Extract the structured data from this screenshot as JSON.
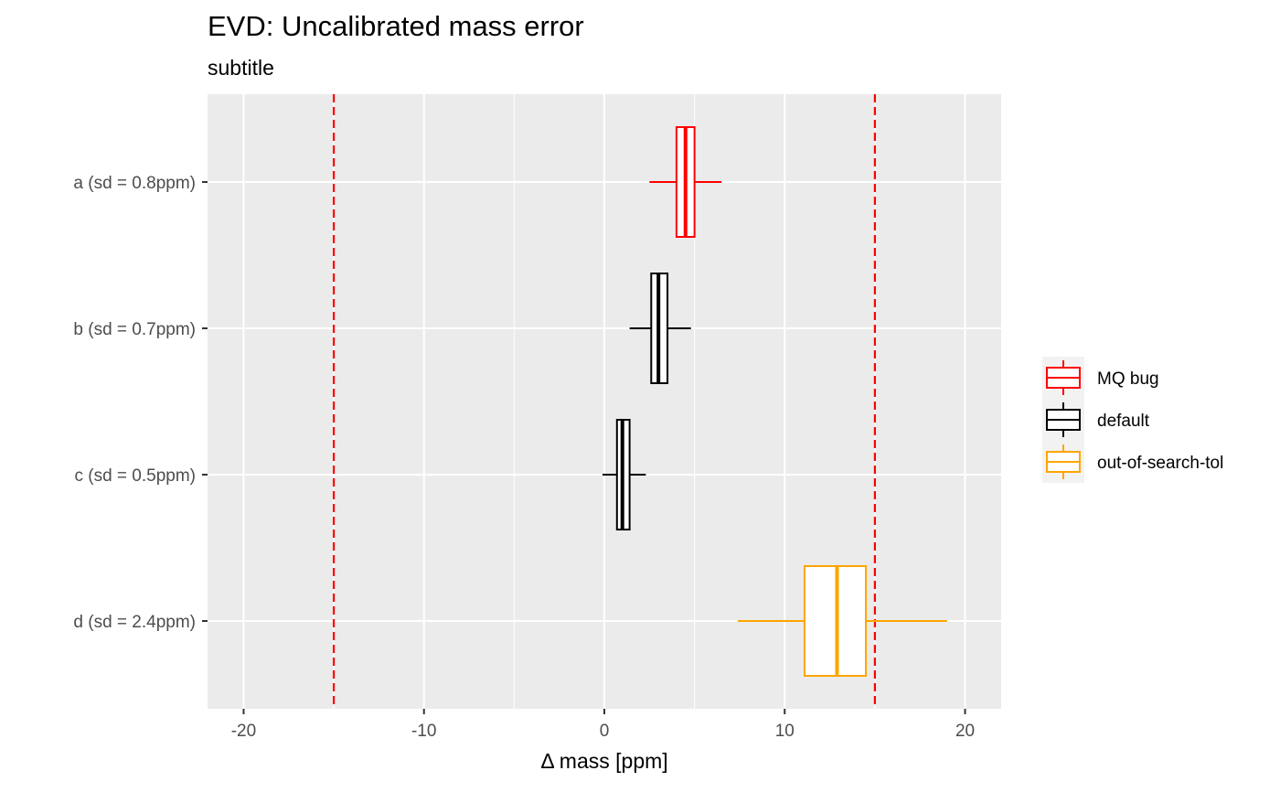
{
  "chart_data": {
    "type": "boxplot",
    "orientation": "horizontal",
    "title": "EVD: Uncalibrated mass error",
    "subtitle": "subtitle",
    "xlabel": "Δ mass [ppm]",
    "ylabel": "",
    "xlim": [
      -22,
      22
    ],
    "xticks": [
      -20,
      -10,
      0,
      10,
      20
    ],
    "xtick_labels": [
      "-20",
      "-10",
      "0",
      "10",
      "20"
    ],
    "categories": [
      "a (sd = 0.8ppm)",
      "b (sd = 0.7ppm)",
      "c (sd = 0.5ppm)",
      "d (sd = 2.4ppm)"
    ],
    "boxes": [
      {
        "category": "a (sd = 0.8ppm)",
        "group": "MQ bug",
        "whisker_low": 2.5,
        "q1": 4.0,
        "median": 4.5,
        "q3": 5.0,
        "whisker_high": 6.5
      },
      {
        "category": "b (sd = 0.7ppm)",
        "group": "default",
        "whisker_low": 1.4,
        "q1": 2.6,
        "median": 3.0,
        "q3": 3.5,
        "whisker_high": 4.8
      },
      {
        "category": "c (sd = 0.5ppm)",
        "group": "default",
        "whisker_low": -0.1,
        "q1": 0.7,
        "median": 1.0,
        "q3": 1.4,
        "whisker_high": 2.3
      },
      {
        "category": "d (sd = 2.4ppm)",
        "group": "out-of-search-tol",
        "whisker_low": 7.4,
        "q1": 11.1,
        "median": 12.9,
        "q3": 14.5,
        "whisker_high": 19.0
      }
    ],
    "reference_lines": [
      -15,
      15
    ],
    "reference_line_color": "#ff0000",
    "legend": {
      "position": "right",
      "entries": [
        {
          "label": "MQ bug",
          "color": "#ff0000"
        },
        {
          "label": "default",
          "color": "#000000"
        },
        {
          "label": "out-of-search-tol",
          "color": "#ffa500"
        }
      ]
    },
    "panel_background": "#ebebeb",
    "grid": true
  }
}
